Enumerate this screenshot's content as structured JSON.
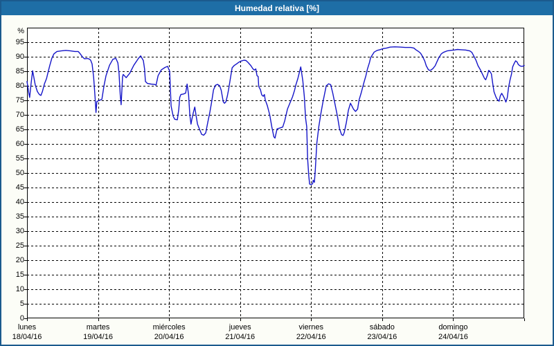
{
  "window": {
    "title": "Humedad relativa [%]"
  },
  "colors": {
    "titlebar_bg": "#1e6ea6",
    "titlebar_text": "#ffffff",
    "outer_border": "#1b5a8d",
    "page_bg": "#fcfdf7",
    "plot_bg": "#ffffff",
    "grid": "#000000",
    "line": "#1414c8",
    "tick_text": "#000000"
  },
  "chart_data": {
    "type": "line",
    "title": "Humedad relativa [%]",
    "ylabel": "%",
    "ylim": [
      0,
      100
    ],
    "yticks": [
      0,
      5,
      10,
      15,
      20,
      25,
      30,
      35,
      40,
      45,
      50,
      55,
      60,
      65,
      70,
      75,
      80,
      85,
      90,
      95
    ],
    "grid": "dashed",
    "x_unit": "hours",
    "xlim": [
      0,
      168
    ],
    "x_categories": [
      {
        "label": "lunes",
        "date": "18/04/16"
      },
      {
        "label": "martes",
        "date": "19/04/16"
      },
      {
        "label": "miércoles",
        "date": "20/04/16"
      },
      {
        "label": "jueves",
        "date": "21/04/16"
      },
      {
        "label": "viernes",
        "date": "22/04/16"
      },
      {
        "label": "sábado",
        "date": "23/04/16"
      },
      {
        "label": "domingo",
        "date": "24/04/16"
      }
    ],
    "series": [
      {
        "name": "Humedad relativa",
        "color": "#1414c8",
        "points": [
          [
            0,
            81.5
          ],
          [
            0.6,
            77.5
          ],
          [
            0.9,
            76
          ],
          [
            1.4,
            81
          ],
          [
            1.9,
            85.2
          ],
          [
            2.3,
            83
          ],
          [
            2.8,
            80.2
          ],
          [
            3.5,
            78
          ],
          [
            4.2,
            77
          ],
          [
            4.7,
            76.7
          ],
          [
            5.2,
            78
          ],
          [
            5.9,
            80.7
          ],
          [
            6.6,
            82.5
          ],
          [
            7,
            84.2
          ],
          [
            7.7,
            87
          ],
          [
            8.4,
            89.5
          ],
          [
            9.1,
            91
          ],
          [
            10.1,
            91.8
          ],
          [
            11.5,
            92
          ],
          [
            13.1,
            92.2
          ],
          [
            14.8,
            92
          ],
          [
            16.2,
            91.8
          ],
          [
            17.3,
            91.8
          ],
          [
            18,
            91
          ],
          [
            18.7,
            90
          ],
          [
            19.4,
            89.3
          ],
          [
            20.4,
            89.4
          ],
          [
            21.1,
            89.2
          ],
          [
            21.5,
            88.8
          ],
          [
            22,
            87.5
          ],
          [
            22.5,
            83
          ],
          [
            23,
            76
          ],
          [
            23.3,
            70.8
          ],
          [
            23.6,
            74.6
          ],
          [
            24.4,
            75
          ],
          [
            25.3,
            75.3
          ],
          [
            26,
            79.9
          ],
          [
            26.7,
            83.5
          ],
          [
            27.9,
            87.1
          ],
          [
            29,
            89.1
          ],
          [
            30,
            89.5
          ],
          [
            30.7,
            87.9
          ],
          [
            31.1,
            84.3
          ],
          [
            31.5,
            77
          ],
          [
            31.8,
            73.5
          ],
          [
            32.3,
            83.1
          ],
          [
            32.5,
            83.9
          ],
          [
            33.5,
            82.8
          ],
          [
            34.7,
            84.3
          ],
          [
            36.1,
            87.1
          ],
          [
            37.7,
            89.5
          ],
          [
            38.4,
            90.3
          ],
          [
            39.3,
            88.7
          ],
          [
            39.7,
            85.9
          ],
          [
            40,
            81.5
          ],
          [
            40.7,
            80.8
          ],
          [
            41.9,
            80.6
          ],
          [
            43.1,
            80.5
          ],
          [
            43.6,
            80.2
          ],
          [
            44.3,
            83.5
          ],
          [
            45.4,
            85.5
          ],
          [
            46.6,
            86.3
          ],
          [
            47.5,
            86.7
          ],
          [
            48.2,
            85
          ],
          [
            48.7,
            73
          ],
          [
            49.4,
            69.5
          ],
          [
            49.9,
            68.5
          ],
          [
            50.8,
            68.3
          ],
          [
            51.3,
            72
          ],
          [
            51.6,
            76
          ],
          [
            52,
            77
          ],
          [
            52.9,
            77.2
          ],
          [
            53.6,
            77.5
          ],
          [
            54.1,
            80.6
          ],
          [
            54.6,
            77
          ],
          [
            55,
            70
          ],
          [
            55.4,
            66.8
          ],
          [
            55.7,
            68.5
          ],
          [
            56.2,
            70.8
          ],
          [
            56.7,
            72.7
          ],
          [
            57.1,
            70
          ],
          [
            57.6,
            66.8
          ],
          [
            58.3,
            65
          ],
          [
            59,
            63.3
          ],
          [
            59.7,
            63
          ],
          [
            60.4,
            63.8
          ],
          [
            61.1,
            67.5
          ],
          [
            61.8,
            71
          ],
          [
            62.3,
            74
          ],
          [
            63,
            78.6
          ],
          [
            63.7,
            80.2
          ],
          [
            64.4,
            80.5
          ],
          [
            65.1,
            80
          ],
          [
            65.6,
            78.5
          ],
          [
            66.3,
            74.5
          ],
          [
            66.7,
            74
          ],
          [
            67.2,
            74.5
          ],
          [
            67.7,
            76.5
          ],
          [
            68.1,
            78.6
          ],
          [
            68.8,
            83
          ],
          [
            69.3,
            86.2
          ],
          [
            70,
            87
          ],
          [
            70.5,
            87.3
          ],
          [
            71.4,
            88
          ],
          [
            72.3,
            88.5
          ],
          [
            73.3,
            88.8
          ],
          [
            74,
            88.7
          ],
          [
            74.7,
            88
          ],
          [
            75.6,
            87
          ],
          [
            76.3,
            85.9
          ],
          [
            76.8,
            85.4
          ],
          [
            77.3,
            85.8
          ],
          [
            77.7,
            83.5
          ],
          [
            78.1,
            83.2
          ],
          [
            78.3,
            79.8
          ],
          [
            78.9,
            78.6
          ],
          [
            79.3,
            76.9
          ],
          [
            79.8,
            76.4
          ],
          [
            80.2,
            77
          ],
          [
            80.5,
            75.2
          ],
          [
            81.2,
            73.2
          ],
          [
            82,
            70
          ],
          [
            82.7,
            66
          ],
          [
            83.4,
            62.5
          ],
          [
            83.8,
            62
          ],
          [
            84.5,
            65.2
          ],
          [
            85.5,
            65.5
          ],
          [
            86.4,
            65.8
          ],
          [
            87.1,
            68
          ],
          [
            88,
            72
          ],
          [
            89,
            74.5
          ],
          [
            89.7,
            76.2
          ],
          [
            90.4,
            78.5
          ],
          [
            90.8,
            80.2
          ],
          [
            91.5,
            82.5
          ],
          [
            92,
            84.5
          ],
          [
            92.5,
            86.5
          ],
          [
            93.2,
            81.7
          ],
          [
            93.7,
            76.2
          ],
          [
            94.1,
            69
          ],
          [
            94.5,
            66
          ],
          [
            94.8,
            55
          ],
          [
            95.2,
            49
          ],
          [
            95.5,
            46.2
          ],
          [
            96,
            46
          ],
          [
            96.5,
            46.3
          ],
          [
            96.7,
            47.5
          ],
          [
            97.1,
            46.8
          ],
          [
            97.4,
            51
          ],
          [
            97.9,
            60
          ],
          [
            98.6,
            66
          ],
          [
            99.3,
            70.5
          ],
          [
            100,
            74.5
          ],
          [
            100.7,
            78
          ],
          [
            101.1,
            80
          ],
          [
            101.9,
            80.7
          ],
          [
            102.6,
            80.4
          ],
          [
            103.3,
            77.5
          ],
          [
            104,
            74
          ],
          [
            104.9,
            69.5
          ],
          [
            105.6,
            65.2
          ],
          [
            106.3,
            63.2
          ],
          [
            106.8,
            62.9
          ],
          [
            107.2,
            64
          ],
          [
            107.9,
            67.3
          ],
          [
            108.6,
            71.6
          ],
          [
            109.3,
            74
          ],
          [
            109.8,
            73
          ],
          [
            110.3,
            72
          ],
          [
            111,
            71.2
          ],
          [
            111.7,
            72
          ],
          [
            112.2,
            75.1
          ],
          [
            112.9,
            77.5
          ],
          [
            113.8,
            81
          ],
          [
            114.5,
            83.5
          ],
          [
            115,
            85.7
          ],
          [
            115.7,
            88
          ],
          [
            116.1,
            89.7
          ],
          [
            116.8,
            90.8
          ],
          [
            117.3,
            91.6
          ],
          [
            118.3,
            92.2
          ],
          [
            119.2,
            92.4
          ],
          [
            120.4,
            92.8
          ],
          [
            121.5,
            93
          ],
          [
            122.7,
            93.3
          ],
          [
            124.3,
            93.4
          ],
          [
            126.2,
            93.3
          ],
          [
            127.8,
            93.2
          ],
          [
            129.7,
            93.2
          ],
          [
            130.7,
            93
          ],
          [
            131.4,
            92.4
          ],
          [
            132.3,
            91.8
          ],
          [
            133,
            91.2
          ],
          [
            133.7,
            90
          ],
          [
            134.4,
            88.5
          ],
          [
            134.9,
            86.9
          ],
          [
            135.6,
            85.6
          ],
          [
            136,
            85.3
          ],
          [
            136.5,
            85.4
          ],
          [
            137.2,
            86
          ],
          [
            137.9,
            86.9
          ],
          [
            138.6,
            88.5
          ],
          [
            139.1,
            89.6
          ],
          [
            140,
            91
          ],
          [
            140.7,
            91.5
          ],
          [
            141.9,
            92
          ],
          [
            143.1,
            92.2
          ],
          [
            144.3,
            92.3
          ],
          [
            145.4,
            92.5
          ],
          [
            146.8,
            92.4
          ],
          [
            148.2,
            92.3
          ],
          [
            149.6,
            92
          ],
          [
            150.3,
            91.5
          ],
          [
            151,
            90.2
          ],
          [
            151.7,
            88.8
          ],
          [
            152.4,
            86.9
          ],
          [
            153.2,
            85.5
          ],
          [
            153.9,
            84
          ],
          [
            154.6,
            82.5
          ],
          [
            155,
            82.1
          ],
          [
            155.5,
            83.5
          ],
          [
            156,
            85.3
          ],
          [
            156.4,
            85
          ],
          [
            156.9,
            84.1
          ],
          [
            157.4,
            80.5
          ],
          [
            157.8,
            77.9
          ],
          [
            158.5,
            76
          ],
          [
            159,
            75.2
          ],
          [
            159.5,
            74.7
          ],
          [
            159.9,
            76.5
          ],
          [
            160.4,
            77.4
          ],
          [
            160.9,
            76.5
          ],
          [
            161.4,
            75.5
          ],
          [
            161.8,
            74.4
          ],
          [
            162.3,
            76
          ],
          [
            162.7,
            79.3
          ],
          [
            163.2,
            82
          ],
          [
            163.7,
            84
          ],
          [
            164.1,
            86.5
          ],
          [
            164.6,
            87.7
          ],
          [
            165.1,
            88.6
          ],
          [
            165.6,
            88.2
          ],
          [
            166,
            87.3
          ],
          [
            166.7,
            86.8
          ],
          [
            167.4,
            86.7
          ],
          [
            168,
            87
          ]
        ]
      }
    ]
  }
}
